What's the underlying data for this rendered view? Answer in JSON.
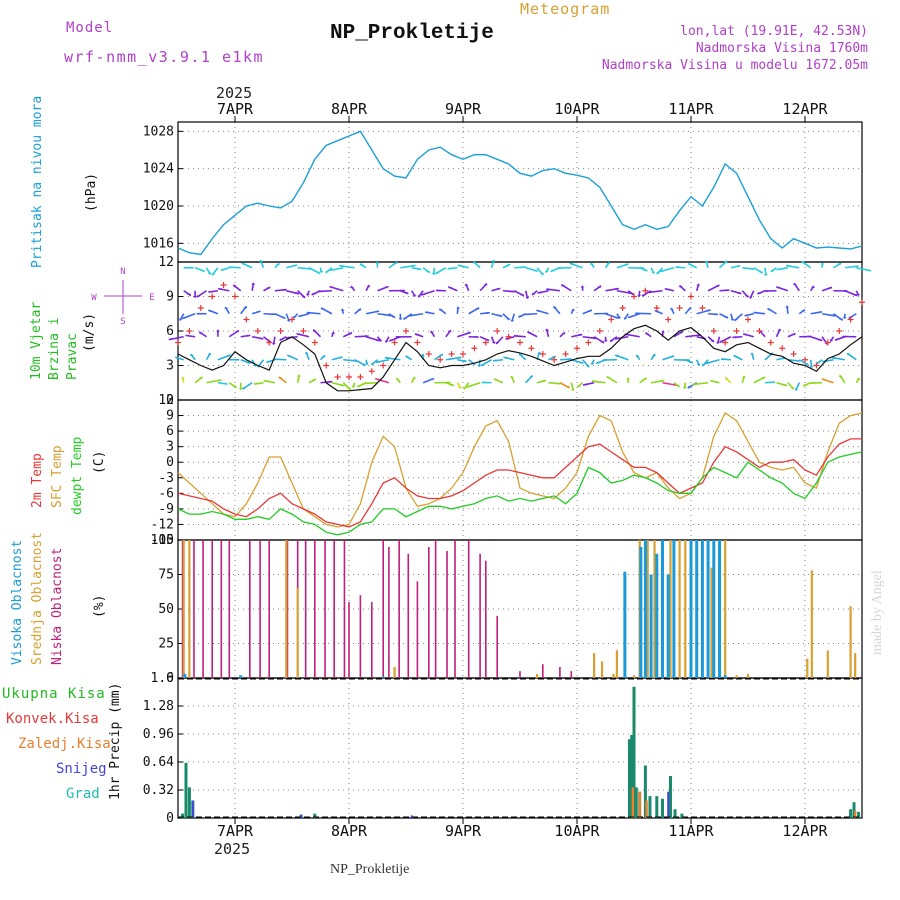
{
  "header": {
    "model_label": "Model",
    "model_name": "wrf-nmm_v3.9.1 e1km",
    "kind": "Meteogram",
    "title": "NP_Prokletije",
    "location": "lon,lat (19.91E, 42.53N)",
    "elevation": "Nadmorska Visina 1760m",
    "elevation_model": "Nadmorska Visina u modelu 1672.05m",
    "footer_title": "NP_Prokletije",
    "watermark": "made by Angel"
  },
  "time_axis": {
    "year": "2025",
    "day_labels": [
      "7APR",
      "8APR",
      "9APR",
      "10APR",
      "11APR",
      "12APR"
    ],
    "day_positions": [
      0.5,
      1.5,
      2.5,
      3.5,
      4.5,
      5.5
    ],
    "range": [
      0,
      6
    ],
    "x_start": 0,
    "x_end": 6
  },
  "colors": {
    "pressure": "#1aa0d8",
    "temp2m": "#e83838",
    "sfc": "#d8a030",
    "dewpt": "#22cc22",
    "high_cloud": "#1a9ad8",
    "mid_cloud": "#d8a030",
    "low_cloud": "#c0207a",
    "rain_total": "#1a8a6a",
    "rain_conv": "#e83838",
    "rain_strat": "#e88030",
    "snow": "#4444dd",
    "graupel": "#22bbaa",
    "model_text": "#b040c8",
    "kind_text": "#d8a030"
  },
  "chart_data": [
    {
      "type": "line",
      "name": "pressure",
      "ylabel": "Pritisak na nivou mora",
      "unit": "(hPa)",
      "ylim": [
        1014,
        1029
      ],
      "yticks": [
        1016,
        1020,
        1024,
        1028
      ],
      "grid": true,
      "x": [
        0,
        0.1,
        0.2,
        0.3,
        0.4,
        0.5,
        0.6,
        0.7,
        0.8,
        0.9,
        1.0,
        1.1,
        1.2,
        1.3,
        1.4,
        1.5,
        1.6,
        1.7,
        1.8,
        1.9,
        2.0,
        2.1,
        2.2,
        2.3,
        2.4,
        2.5,
        2.6,
        2.7,
        2.8,
        2.9,
        3.0,
        3.1,
        3.2,
        3.3,
        3.4,
        3.5,
        3.6,
        3.7,
        3.8,
        3.9,
        4.0,
        4.1,
        4.2,
        4.3,
        4.4,
        4.5,
        4.6,
        4.7,
        4.8,
        4.9,
        5.0,
        5.1,
        5.2,
        5.3,
        5.4,
        5.5,
        5.6,
        5.7,
        5.8,
        5.9,
        6.0
      ],
      "y": [
        1015.5,
        1015,
        1014.8,
        1016.5,
        1018,
        1019,
        1020,
        1020.3,
        1020,
        1019.8,
        1020.5,
        1022.5,
        1025,
        1026.5,
        1027,
        1027.5,
        1028,
        1026,
        1024,
        1023.2,
        1023,
        1025,
        1026,
        1026.3,
        1025.5,
        1025,
        1025.5,
        1025.5,
        1025,
        1024.5,
        1023.5,
        1023.2,
        1023.8,
        1024,
        1023.5,
        1023.3,
        1023,
        1022,
        1020,
        1018,
        1017.5,
        1018,
        1017.5,
        1017.8,
        1019.5,
        1021,
        1020,
        1022,
        1024.5,
        1023.5,
        1021,
        1018.5,
        1016.5,
        1015.5,
        1016.5,
        1016,
        1015.5,
        1015.6,
        1015.5,
        1015.4,
        1015.7
      ]
    },
    {
      "type": "line",
      "name": "wind",
      "ylabel": "10m Vjetar Brzina i Pravac",
      "unit": "(m/s)",
      "ylim": [
        0,
        12
      ],
      "yticks": [
        0,
        3,
        6,
        9,
        12
      ],
      "grid": true,
      "compass": [
        "W",
        "E",
        "N",
        "S"
      ],
      "x": [
        0,
        0.1,
        0.2,
        0.3,
        0.4,
        0.5,
        0.6,
        0.7,
        0.8,
        0.9,
        1.0,
        1.1,
        1.2,
        1.3,
        1.4,
        1.5,
        1.6,
        1.7,
        1.8,
        1.9,
        2.0,
        2.1,
        2.2,
        2.3,
        2.4,
        2.5,
        2.6,
        2.7,
        2.8,
        2.9,
        3.0,
        3.1,
        3.2,
        3.3,
        3.4,
        3.5,
        3.6,
        3.7,
        3.8,
        3.9,
        4.0,
        4.1,
        4.2,
        4.3,
        4.4,
        4.5,
        4.6,
        4.7,
        4.8,
        4.9,
        5.0,
        5.1,
        5.2,
        5.3,
        5.4,
        5.5,
        5.6,
        5.7,
        5.8,
        5.9,
        6.0
      ],
      "speed": [
        4,
        3.5,
        3,
        2.6,
        3,
        4.2,
        3.5,
        3,
        2.6,
        5,
        5.5,
        4.8,
        4,
        1.5,
        0.8,
        0.8,
        0.9,
        1,
        2,
        3.5,
        5,
        4.2,
        3,
        2.8,
        3,
        3,
        3.2,
        3.5,
        4,
        4.3,
        4.1,
        3.8,
        3.4,
        3,
        3.3,
        3.6,
        3.8,
        3.8,
        4.5,
        5.5,
        6.2,
        6.5,
        6,
        5.2,
        6,
        6.3,
        5.5,
        4.5,
        4.2,
        4.8,
        5,
        4.5,
        4,
        3.8,
        3.2,
        3,
        2.5,
        3.6,
        4,
        4.8,
        5.5
      ],
      "gust": [
        5,
        6,
        8,
        9,
        10,
        9,
        7,
        6,
        5,
        6,
        7,
        6,
        5,
        3,
        2,
        2,
        2,
        2.5,
        3,
        5,
        6,
        5,
        4,
        3.5,
        4,
        4,
        4.5,
        5,
        6,
        5.5,
        5,
        4.5,
        4,
        3.5,
        4,
        4.5,
        5,
        6,
        7,
        8,
        9,
        9.5,
        8,
        7,
        8,
        9,
        8,
        6,
        5,
        6,
        7,
        6,
        5,
        4.5,
        4,
        3.5,
        3,
        5,
        6,
        7,
        8.5
      ],
      "arrow_rows": [
        {
          "level": 11.5,
          "color": "#22ccdd"
        },
        {
          "level": 9.5,
          "color": "#7a22e0"
        },
        {
          "level": 7.5,
          "color": "#3a66ee"
        },
        {
          "level": 5.5,
          "color": "#7a22e0"
        },
        {
          "level": 3.5,
          "color": "#22b0dd"
        },
        {
          "level": 1.5,
          "color": "#8ad818"
        }
      ]
    },
    {
      "type": "line",
      "name": "temperature",
      "ylabel": "2m Temp",
      "ylabel2": "SFC Temp",
      "ylabel3": "dewpt Temp",
      "unit": "(C)",
      "ylim": [
        -15,
        12
      ],
      "yticks": [
        -15,
        -12,
        -9,
        -6,
        -3,
        0,
        3,
        6,
        9,
        12
      ],
      "grid": true,
      "x": [
        0,
        0.1,
        0.2,
        0.3,
        0.4,
        0.5,
        0.6,
        0.7,
        0.8,
        0.9,
        1.0,
        1.1,
        1.2,
        1.3,
        1.4,
        1.5,
        1.6,
        1.7,
        1.8,
        1.9,
        2.0,
        2.1,
        2.2,
        2.3,
        2.4,
        2.5,
        2.6,
        2.7,
        2.8,
        2.9,
        3.0,
        3.1,
        3.2,
        3.3,
        3.4,
        3.5,
        3.6,
        3.7,
        3.8,
        3.9,
        4.0,
        4.1,
        4.2,
        4.3,
        4.4,
        4.5,
        4.6,
        4.7,
        4.8,
        4.9,
        5.0,
        5.1,
        5.2,
        5.3,
        5.4,
        5.5,
        5.6,
        5.7,
        5.8,
        5.9,
        6.0
      ],
      "t2m": [
        -6,
        -6.5,
        -7,
        -7.5,
        -9,
        -10,
        -10.5,
        -9,
        -7,
        -6,
        -8,
        -9,
        -10,
        -11.5,
        -12,
        -12.5,
        -11.5,
        -8,
        -4,
        -3,
        -5,
        -6.5,
        -7,
        -7,
        -6.5,
        -5.5,
        -4,
        -2.5,
        -1.5,
        -1.5,
        -2,
        -2.5,
        -3,
        -3,
        -1,
        1,
        3,
        3.5,
        2,
        0.5,
        -1,
        -1,
        -2,
        -4,
        -6,
        -5,
        -4,
        0,
        3,
        2,
        0.5,
        -1,
        0,
        0,
        0.5,
        -1.5,
        -2.5,
        1,
        3.5,
        4.5,
        4.5
      ],
      "sfc": [
        -2,
        -4,
        -6,
        -8,
        -10,
        -10.5,
        -8,
        -4,
        1,
        1,
        -4,
        -9,
        -10.5,
        -12,
        -12.5,
        -12,
        -8,
        0,
        5,
        3,
        -5,
        -8.5,
        -8,
        -7,
        -5,
        -2,
        3,
        7,
        8,
        4,
        -5,
        -6,
        -6.5,
        -7,
        -5,
        -2,
        5,
        9,
        8,
        2,
        -2,
        -3,
        -2,
        -5,
        -7,
        -6,
        -3,
        5,
        9.5,
        8,
        4,
        0,
        -1,
        -1.5,
        -1,
        -4,
        -5,
        2,
        7.5,
        9,
        9.5
      ],
      "dewpt": [
        -9,
        -10,
        -10,
        -9.5,
        -10,
        -11,
        -11,
        -10.5,
        -11,
        -9,
        -10,
        -11.5,
        -12,
        -13.5,
        -14,
        -13.5,
        -12,
        -11.5,
        -9,
        -9,
        -10.5,
        -9.5,
        -8.5,
        -8.5,
        -9,
        -8.5,
        -8,
        -7,
        -6.5,
        -7.5,
        -7,
        -7.5,
        -7,
        -6.5,
        -8,
        -6,
        -1,
        -2,
        -4,
        -3.5,
        -2.5,
        -3,
        -4,
        -5.5,
        -6,
        -6,
        -3,
        -1,
        -2,
        -3,
        0,
        -1.5,
        -3,
        -4,
        -6,
        -7,
        -4,
        0,
        1,
        1.5,
        2
      ]
    },
    {
      "type": "bar",
      "name": "clouds",
      "ylabel": "Visoka Oblacnost",
      "ylabel2": "Srednja Oblacnost",
      "ylabel3": "Niska Oblacnost",
      "unit": "(%)",
      "ylim": [
        0,
        100
      ],
      "yticks": [
        0,
        25,
        50,
        75,
        100
      ],
      "grid": true,
      "low": [
        [
          0.04,
          100
        ],
        [
          0.14,
          100
        ],
        [
          0.22,
          100
        ],
        [
          0.3,
          100
        ],
        [
          0.38,
          100
        ],
        [
          0.45,
          100
        ],
        [
          0.63,
          100
        ],
        [
          0.72,
          100
        ],
        [
          0.8,
          100
        ],
        [
          0.96,
          100
        ],
        [
          1.05,
          100
        ],
        [
          1.12,
          100
        ],
        [
          1.2,
          100
        ],
        [
          1.29,
          100
        ],
        [
          1.37,
          100
        ],
        [
          1.46,
          100
        ],
        [
          1.5,
          55
        ],
        [
          1.6,
          60
        ],
        [
          1.7,
          55
        ],
        [
          1.8,
          100
        ],
        [
          1.85,
          95
        ],
        [
          1.94,
          100
        ],
        [
          2.02,
          90
        ],
        [
          2.1,
          70
        ],
        [
          2.2,
          95
        ],
        [
          2.26,
          100
        ],
        [
          2.36,
          92
        ],
        [
          2.43,
          100
        ],
        [
          2.55,
          100
        ],
        [
          2.65,
          90
        ],
        [
          2.7,
          85
        ],
        [
          2.8,
          45
        ],
        [
          3.0,
          5
        ],
        [
          3.2,
          10
        ],
        [
          3.35,
          8
        ],
        [
          3.45,
          5
        ]
      ],
      "mid": [
        [
          0.05,
          100
        ],
        [
          0.1,
          100
        ],
        [
          0.95,
          100
        ],
        [
          1.05,
          65
        ],
        [
          1.9,
          8
        ],
        [
          3.15,
          3
        ],
        [
          3.65,
          18
        ],
        [
          3.72,
          12
        ],
        [
          3.82,
          3
        ],
        [
          3.85,
          20
        ],
        [
          3.92,
          48
        ],
        [
          4.0,
          2
        ],
        [
          4.05,
          100
        ],
        [
          4.12,
          100
        ],
        [
          4.18,
          100
        ],
        [
          4.25,
          100
        ],
        [
          4.32,
          100
        ],
        [
          4.4,
          100
        ],
        [
          4.45,
          100
        ],
        [
          4.55,
          100
        ],
        [
          4.68,
          80
        ],
        [
          4.75,
          100
        ],
        [
          4.8,
          100
        ],
        [
          4.9,
          2
        ],
        [
          5.0,
          3
        ],
        [
          5.52,
          14
        ],
        [
          5.56,
          78
        ],
        [
          5.7,
          20
        ],
        [
          5.9,
          52
        ],
        [
          5.94,
          18
        ]
      ],
      "high": [
        [
          0.06,
          3
        ],
        [
          0.55,
          2
        ],
        [
          1.8,
          1
        ],
        [
          3.92,
          77
        ],
        [
          4.06,
          95
        ],
        [
          4.1,
          100
        ],
        [
          4.15,
          75
        ],
        [
          4.2,
          90
        ],
        [
          4.25,
          100
        ],
        [
          4.3,
          75
        ],
        [
          4.35,
          100
        ],
        [
          4.5,
          100
        ],
        [
          4.55,
          100
        ],
        [
          4.6,
          100
        ],
        [
          4.65,
          100
        ],
        [
          4.7,
          100
        ],
        [
          4.75,
          100
        ],
        [
          4.8,
          2
        ]
      ]
    },
    {
      "type": "bar",
      "name": "precip",
      "ylabel": "1hr Precip (mm)",
      "legend": [
        "Ukupna Kisa",
        "Konvek.Kisa",
        "Zaledj.Kisa",
        "Snijeg",
        "Grad"
      ],
      "ylim": [
        0,
        1.6
      ],
      "yticks": [
        0,
        0.32,
        0.64,
        0.96,
        1.28,
        1.6
      ],
      "grid": true,
      "total": [
        [
          0.04,
          0.05
        ],
        [
          0.07,
          0.63
        ],
        [
          0.1,
          0.35
        ],
        [
          0.13,
          0.2
        ],
        [
          1.08,
          0.04
        ],
        [
          1.2,
          0.05
        ],
        [
          3.96,
          0.9
        ],
        [
          3.98,
          0.95
        ],
        [
          4.0,
          1.5
        ],
        [
          4.02,
          0.35
        ],
        [
          4.05,
          0.3
        ],
        [
          4.1,
          0.6
        ],
        [
          4.14,
          0.25
        ],
        [
          4.2,
          0.25
        ],
        [
          4.25,
          0.22
        ],
        [
          4.32,
          0.48
        ],
        [
          4.36,
          0.1
        ],
        [
          4.42,
          0.05
        ],
        [
          5.9,
          0.1
        ],
        [
          5.93,
          0.18
        ],
        [
          5.97,
          0.07
        ]
      ],
      "strat": [
        [
          3.99,
          0.35
        ],
        [
          4.05,
          0.3
        ],
        [
          4.11,
          0.2
        ],
        [
          5.94,
          0.08
        ]
      ],
      "snow": [
        [
          0.13,
          0.2
        ],
        [
          1.08,
          0.04
        ],
        [
          2.05,
          0.03
        ],
        [
          4.3,
          0.3
        ]
      ]
    }
  ]
}
